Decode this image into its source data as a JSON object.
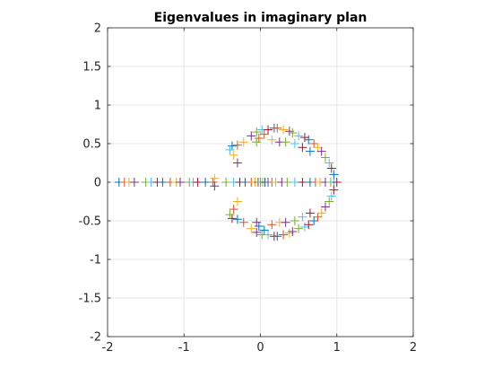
{
  "chart_data": {
    "type": "scatter",
    "title": "Eigenvalues in imaginary plan",
    "xlabel": "",
    "ylabel": "",
    "xlim": [
      -2,
      2
    ],
    "ylim": [
      -2,
      2
    ],
    "xticks": [
      -2,
      -1,
      0,
      1,
      2
    ],
    "yticks": [
      -2,
      -1.5,
      -1,
      -0.5,
      0,
      0.5,
      1,
      1.5,
      2
    ],
    "xtick_labels": [
      "-2",
      "-1",
      "0",
      "1",
      "2"
    ],
    "ytick_labels": [
      "-2",
      "-1.5",
      "-1",
      "-0.5",
      "0",
      "0.5",
      "1",
      "1.5",
      "2"
    ],
    "grid": true,
    "marker": "plus",
    "colors": [
      "#0072BD",
      "#D95319",
      "#EDB120",
      "#7E2F8E",
      "#77AC30",
      "#4DBEEE",
      "#A2142F"
    ],
    "points": [
      {
        "x": -1.85,
        "y": 0
      },
      {
        "x": -1.78,
        "y": 0
      },
      {
        "x": -1.72,
        "y": 0
      },
      {
        "x": -1.65,
        "y": 0
      },
      {
        "x": -1.5,
        "y": 0
      },
      {
        "x": -1.43,
        "y": 0
      },
      {
        "x": -1.35,
        "y": 0
      },
      {
        "x": -1.28,
        "y": 0
      },
      {
        "x": -1.18,
        "y": 0
      },
      {
        "x": -1.1,
        "y": 0
      },
      {
        "x": -1.05,
        "y": 0
      },
      {
        "x": -0.93,
        "y": 0
      },
      {
        "x": -0.88,
        "y": 0
      },
      {
        "x": -0.82,
        "y": 0
      },
      {
        "x": -0.72,
        "y": 0
      },
      {
        "x": -0.62,
        "y": 0
      },
      {
        "x": -0.6,
        "y": 0.05
      },
      {
        "x": -0.6,
        "y": -0.05
      },
      {
        "x": -0.45,
        "y": 0
      },
      {
        "x": -0.35,
        "y": 0
      },
      {
        "x": -0.27,
        "y": 0
      },
      {
        "x": -0.2,
        "y": 0
      },
      {
        "x": -0.12,
        "y": 0
      },
      {
        "x": -0.07,
        "y": 0
      },
      {
        "x": -0.03,
        "y": 0
      },
      {
        "x": 0,
        "y": 0
      },
      {
        "x": 0.03,
        "y": 0
      },
      {
        "x": 0.06,
        "y": 0
      },
      {
        "x": 0.1,
        "y": 0
      },
      {
        "x": 0.15,
        "y": 0
      },
      {
        "x": 0.2,
        "y": 0
      },
      {
        "x": 0.28,
        "y": 0
      },
      {
        "x": 0.35,
        "y": 0
      },
      {
        "x": 0.45,
        "y": 0
      },
      {
        "x": 0.55,
        "y": 0
      },
      {
        "x": 0.65,
        "y": 0
      },
      {
        "x": 0.72,
        "y": 0
      },
      {
        "x": 0.78,
        "y": 0
      },
      {
        "x": 0.85,
        "y": 0
      },
      {
        "x": 0.92,
        "y": 0
      },
      {
        "x": 0.96,
        "y": 0
      },
      {
        "x": 1.0,
        "y": 0
      },
      {
        "x": -0.37,
        "y": 0.47
      },
      {
        "x": -0.3,
        "y": 0.48
      },
      {
        "x": -0.22,
        "y": 0.52
      },
      {
        "x": -0.12,
        "y": 0.6
      },
      {
        "x": -0.05,
        "y": 0.65
      },
      {
        "x": 0.02,
        "y": 0.68
      },
      {
        "x": 0.1,
        "y": 0.68
      },
      {
        "x": 0.18,
        "y": 0.7
      },
      {
        "x": 0.22,
        "y": 0.7
      },
      {
        "x": 0.3,
        "y": 0.68
      },
      {
        "x": 0.38,
        "y": 0.66
      },
      {
        "x": 0.42,
        "y": 0.64
      },
      {
        "x": 0.5,
        "y": 0.6
      },
      {
        "x": 0.58,
        "y": 0.58
      },
      {
        "x": 0.63,
        "y": 0.55
      },
      {
        "x": 0.7,
        "y": 0.5
      },
      {
        "x": 0.75,
        "y": 0.45
      },
      {
        "x": 0.8,
        "y": 0.4
      },
      {
        "x": 0.85,
        "y": 0.32
      },
      {
        "x": 0.9,
        "y": 0.25
      },
      {
        "x": 0.93,
        "y": 0.18
      },
      {
        "x": 0.96,
        "y": 0.1
      },
      {
        "x": 0.05,
        "y": 0.62
      },
      {
        "x": 0.15,
        "y": 0.55
      },
      {
        "x": 0.25,
        "y": 0.52
      },
      {
        "x": 0.33,
        "y": 0.52
      },
      {
        "x": 0.45,
        "y": 0.5
      },
      {
        "x": 0.55,
        "y": 0.45
      },
      {
        "x": 0.65,
        "y": 0.4
      },
      {
        "x": -0.02,
        "y": 0.57
      },
      {
        "x": -0.35,
        "y": 0.35
      },
      {
        "x": -0.3,
        "y": 0.25
      },
      {
        "x": -0.05,
        "y": 0.52
      },
      {
        "x": -0.4,
        "y": 0.42
      },
      {
        "x": -0.37,
        "y": -0.47
      },
      {
        "x": -0.3,
        "y": -0.48
      },
      {
        "x": -0.22,
        "y": -0.52
      },
      {
        "x": -0.12,
        "y": -0.6
      },
      {
        "x": -0.05,
        "y": -0.65
      },
      {
        "x": 0.02,
        "y": -0.68
      },
      {
        "x": 0.1,
        "y": -0.68
      },
      {
        "x": 0.18,
        "y": -0.7
      },
      {
        "x": 0.22,
        "y": -0.7
      },
      {
        "x": 0.3,
        "y": -0.68
      },
      {
        "x": 0.38,
        "y": -0.66
      },
      {
        "x": 0.42,
        "y": -0.64
      },
      {
        "x": 0.5,
        "y": -0.6
      },
      {
        "x": 0.58,
        "y": -0.58
      },
      {
        "x": 0.63,
        "y": -0.55
      },
      {
        "x": 0.7,
        "y": -0.5
      },
      {
        "x": 0.75,
        "y": -0.45
      },
      {
        "x": 0.8,
        "y": -0.4
      },
      {
        "x": 0.85,
        "y": -0.32
      },
      {
        "x": 0.9,
        "y": -0.25
      },
      {
        "x": 0.93,
        "y": -0.18
      },
      {
        "x": 0.96,
        "y": -0.1
      },
      {
        "x": 0.05,
        "y": -0.62
      },
      {
        "x": 0.15,
        "y": -0.55
      },
      {
        "x": 0.25,
        "y": -0.52
      },
      {
        "x": 0.33,
        "y": -0.52
      },
      {
        "x": 0.45,
        "y": -0.5
      },
      {
        "x": 0.55,
        "y": -0.45
      },
      {
        "x": 0.65,
        "y": -0.4
      },
      {
        "x": -0.02,
        "y": -0.57
      },
      {
        "x": -0.35,
        "y": -0.35
      },
      {
        "x": -0.3,
        "y": -0.25
      },
      {
        "x": -0.05,
        "y": -0.52
      },
      {
        "x": -0.4,
        "y": -0.42
      }
    ]
  }
}
